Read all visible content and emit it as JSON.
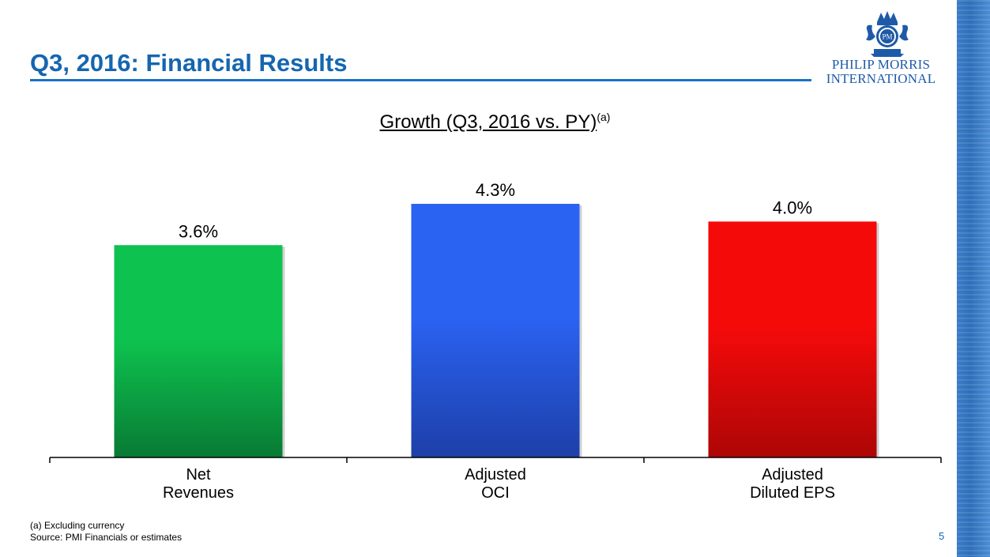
{
  "header": {
    "title": "Q3, 2016: Financial Results",
    "logo_line1": "PHILIP MORRIS",
    "logo_line2": "INTERNATIONAL",
    "logo_emblem_text": "PM"
  },
  "chart_data": {
    "type": "bar",
    "title": "Growth (Q3, 2016 vs. PY)",
    "title_superscript": "(a)",
    "categories": [
      [
        "Net",
        "Revenues"
      ],
      [
        "Adjusted",
        "OCI"
      ],
      [
        "Adjusted",
        "Diluted EPS"
      ]
    ],
    "values": [
      3.6,
      4.3,
      4.0
    ],
    "data_labels": [
      "3.6%",
      "4.3%",
      "4.0%"
    ],
    "colors": [
      "#0ec24f",
      "#2a62f2",
      "#f50a0a"
    ],
    "colors_dark": [
      "#087a34",
      "#1d3fa8",
      "#ad0606"
    ],
    "ylim": [
      0,
      4.3
    ],
    "xlabel": "",
    "ylabel": "",
    "grid": false,
    "legend": "none"
  },
  "footer": {
    "note": "(a)  Excluding currency",
    "source": "Source: PMI Financials or estimates",
    "page_number": "5"
  },
  "colors": {
    "title": "#1566b0",
    "rule": "#1a73c4",
    "stripe": "#2f6fb8"
  }
}
